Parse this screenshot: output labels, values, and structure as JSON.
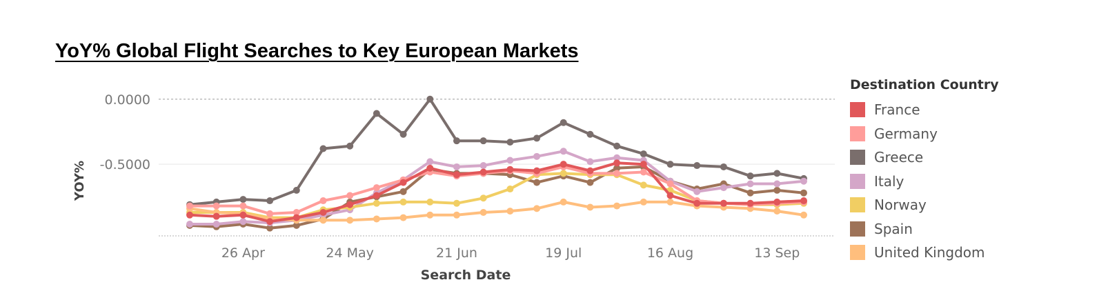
{
  "title": "YoY% Global Flight Searches to Key European Markets",
  "legend_title": "Destination Country",
  "chart_data": {
    "type": "line",
    "xlabel": "Search Date",
    "ylabel": "YOY%",
    "x_tick_labels": [
      "26 Apr",
      "24 May",
      "21 Jun",
      "19 Jul",
      "16 Aug",
      "13 Sep"
    ],
    "y_tick_labels": [
      "0.0000",
      "-0.5000"
    ],
    "y_ticks": [
      0,
      -0.5
    ],
    "ylim": [
      -1.05,
      0.02
    ],
    "x_index_range": [
      0,
      23
    ],
    "x_tick_positions": [
      2,
      6,
      10,
      14,
      18,
      22
    ],
    "grid": true,
    "legend_position": "right",
    "series": [
      {
        "name": "Greece",
        "color": "#7a6e6c",
        "values": [
          -0.81,
          -0.79,
          -0.77,
          -0.78,
          -0.7,
          -0.38,
          -0.36,
          -0.11,
          -0.27,
          0.0,
          -0.32,
          -0.32,
          -0.33,
          -0.3,
          -0.18,
          -0.27,
          -0.36,
          -0.42,
          -0.5,
          -0.51,
          -0.52,
          -0.59,
          -0.57,
          -0.61
        ]
      },
      {
        "name": "Spain",
        "color": "#9e7358",
        "values": [
          -0.97,
          -0.98,
          -0.96,
          -0.99,
          -0.97,
          -0.92,
          -0.79,
          -0.75,
          -0.71,
          -0.54,
          -0.57,
          -0.57,
          -0.58,
          -0.64,
          -0.59,
          -0.64,
          -0.53,
          -0.52,
          -0.63,
          -0.69,
          -0.65,
          -0.72,
          -0.7,
          -0.72
        ]
      },
      {
        "name": "Italy",
        "color": "#d4a6c8",
        "values": [
          -0.96,
          -0.96,
          -0.94,
          -0.95,
          -0.93,
          -0.89,
          -0.85,
          -0.72,
          -0.62,
          -0.48,
          -0.52,
          -0.51,
          -0.47,
          -0.44,
          -0.4,
          -0.48,
          -0.45,
          -0.47,
          -0.63,
          -0.71,
          -0.68,
          -0.65,
          -0.65,
          -0.63
        ]
      },
      {
        "name": "Norway",
        "color": "#f1ce63",
        "values": [
          -0.87,
          -0.87,
          -0.87,
          -0.91,
          -0.91,
          -0.85,
          -0.83,
          -0.8,
          -0.79,
          -0.79,
          -0.8,
          -0.76,
          -0.69,
          -0.58,
          -0.57,
          -0.58,
          -0.58,
          -0.66,
          -0.7,
          -0.78,
          -0.8,
          -0.81,
          -0.81,
          -0.8
        ]
      },
      {
        "name": "United Kingdom",
        "color": "#ffbe7d",
        "values": [
          -0.84,
          -0.87,
          -0.88,
          -0.92,
          -0.93,
          -0.93,
          -0.93,
          -0.92,
          -0.91,
          -0.89,
          -0.89,
          -0.87,
          -0.86,
          -0.84,
          -0.79,
          -0.83,
          -0.82,
          -0.79,
          -0.79,
          -0.82,
          -0.83,
          -0.84,
          -0.86,
          -0.89
        ]
      },
      {
        "name": "Germany",
        "color": "#ff9d9a",
        "values": [
          -0.82,
          -0.82,
          -0.82,
          -0.88,
          -0.87,
          -0.78,
          -0.74,
          -0.68,
          -0.62,
          -0.56,
          -0.59,
          -0.57,
          -0.55,
          -0.57,
          -0.52,
          -0.57,
          -0.57,
          -0.56,
          -0.65,
          -0.78,
          -0.8,
          -0.81,
          -0.8,
          -0.79
        ]
      },
      {
        "name": "France",
        "color": "#e15759",
        "values": [
          -0.89,
          -0.9,
          -0.89,
          -0.94,
          -0.91,
          -0.87,
          -0.81,
          -0.74,
          -0.64,
          -0.53,
          -0.58,
          -0.56,
          -0.54,
          -0.55,
          -0.5,
          -0.55,
          -0.49,
          -0.5,
          -0.74,
          -0.8,
          -0.8,
          -0.8,
          -0.79,
          -0.78
        ]
      }
    ]
  },
  "legend": [
    {
      "name": "France",
      "color": "#e15759"
    },
    {
      "name": "Germany",
      "color": "#ff9d9a"
    },
    {
      "name": "Greece",
      "color": "#7a6e6c"
    },
    {
      "name": "Italy",
      "color": "#d4a6c8"
    },
    {
      "name": "Norway",
      "color": "#f1ce63"
    },
    {
      "name": "Spain",
      "color": "#9e7358"
    },
    {
      "name": "United Kingdom",
      "color": "#ffbe7d"
    }
  ]
}
